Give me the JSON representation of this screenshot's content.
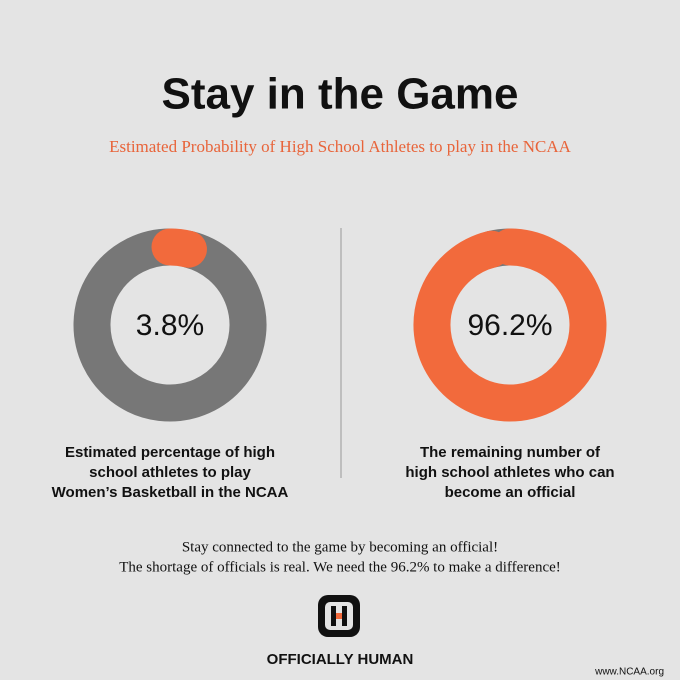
{
  "title": "Stay in the Game",
  "subtitle": "Estimated Probability of High School Athletes to play in the NCAA",
  "chart_data": [
    {
      "type": "donut",
      "values": [
        3.8,
        96.2
      ],
      "colors": [
        "#f26a3c",
        "#777777"
      ],
      "center_label": "3.8%",
      "caption": [
        "Estimated percentage of high",
        "school athletes to play",
        "Women’s Basketball in the NCAA"
      ]
    },
    {
      "type": "donut",
      "values": [
        96.2,
        3.8
      ],
      "colors": [
        "#f26a3c",
        "#777777"
      ],
      "center_label": "96.2%",
      "caption": [
        "The remaining number of",
        "high school athletes who can",
        "become an official"
      ]
    }
  ],
  "footer": [
    "Stay connected to the game by becoming an official!",
    "The shortage of officials is real. We need the 96.2% to make a difference!"
  ],
  "brand": "OFFICIALLY HUMAN",
  "source": "www.NCAA.org"
}
